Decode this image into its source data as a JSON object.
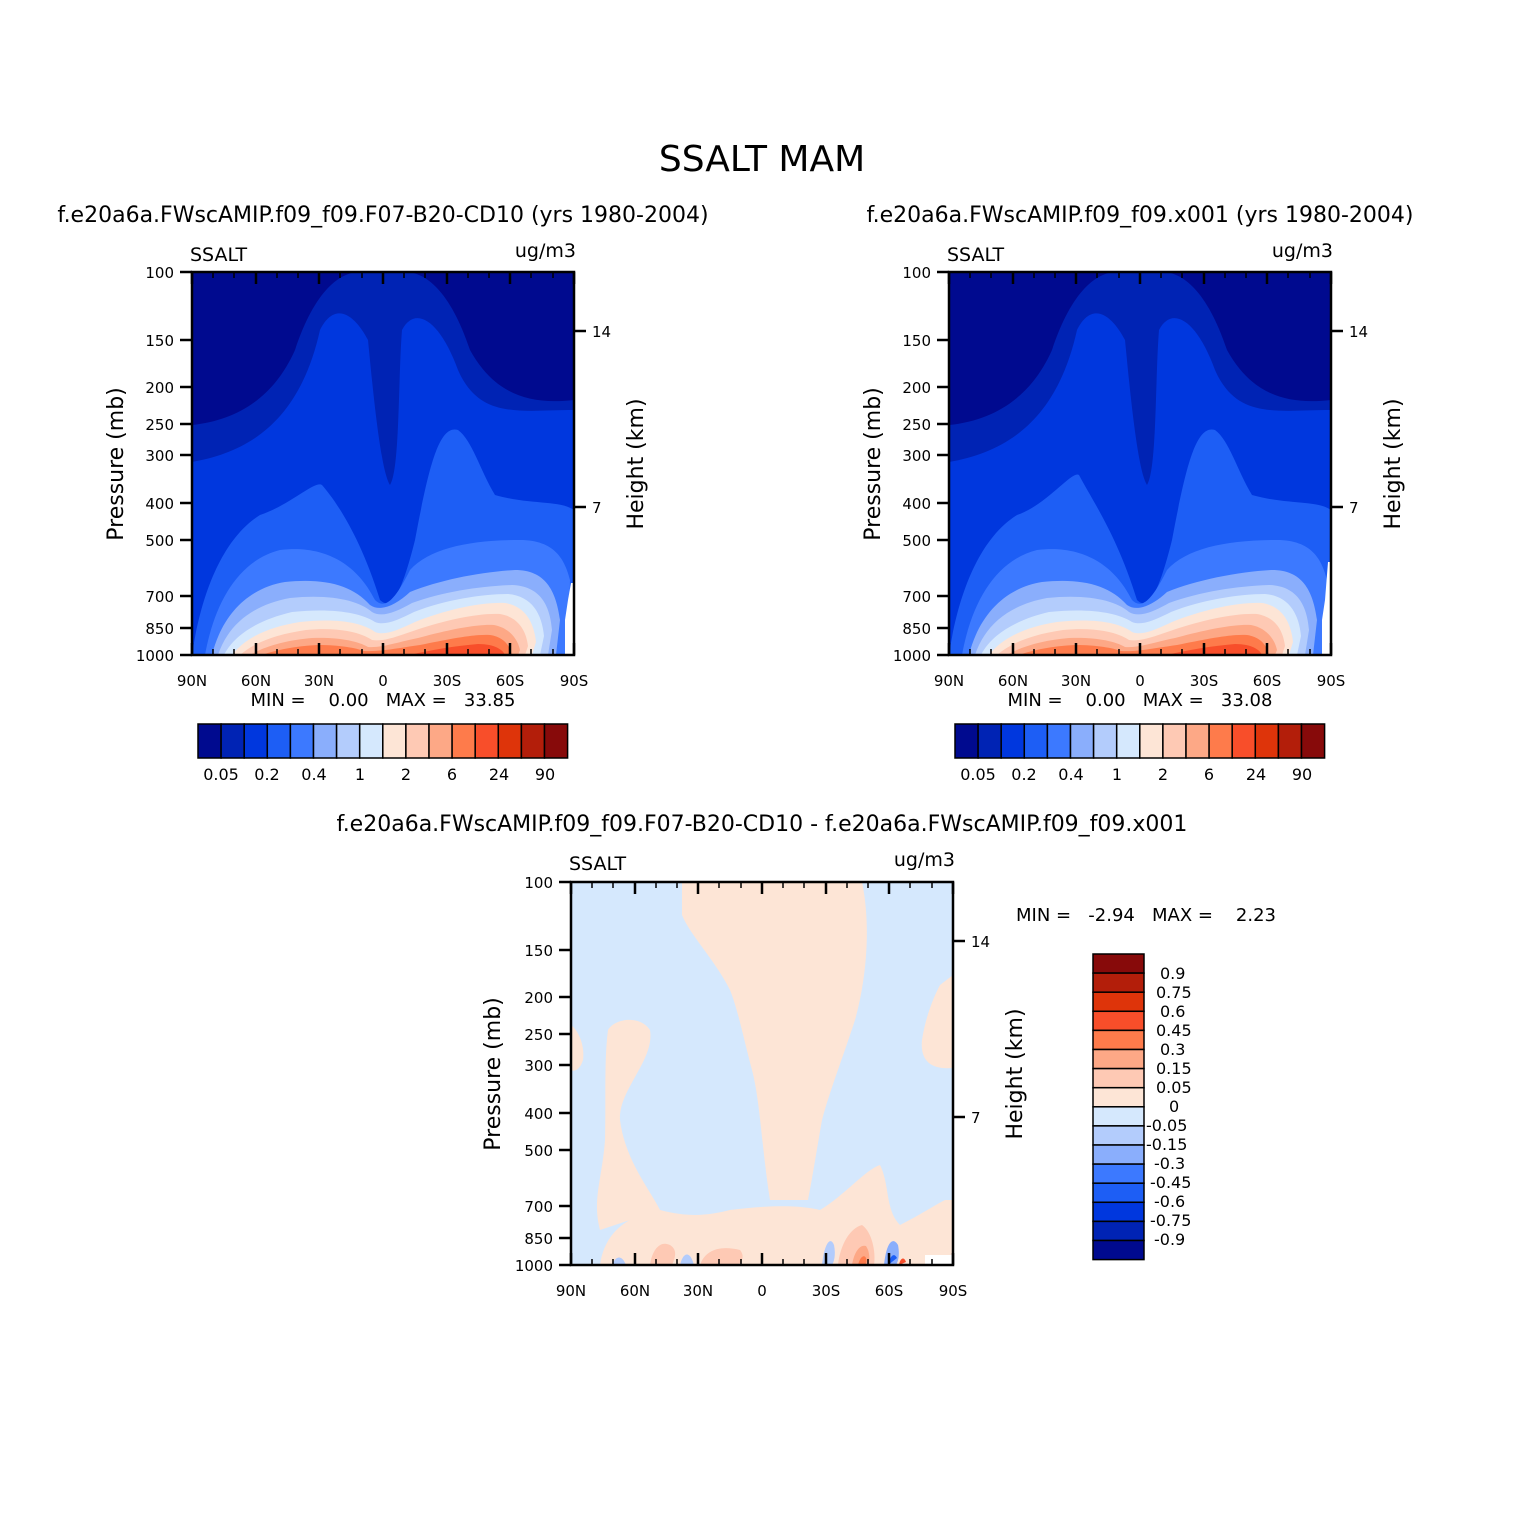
{
  "title": "SSALT MAM",
  "colors": {
    "abs": [
      "#000a8f",
      "#0023b4",
      "#0037de",
      "#1d5ef5",
      "#3c79ff",
      "#8aaefc",
      "#b3ccfc",
      "#d5e8fd",
      "#fde5d6",
      "#fec9b4",
      "#fda886",
      "#fe7b4b",
      "#f84e2a",
      "#de340a",
      "#b31e0a",
      "#870a0a"
    ],
    "diff": [
      "#000a8f",
      "#0023b4",
      "#0037de",
      "#1d5ef5",
      "#3c79ff",
      "#8aaefc",
      "#b3ccfc",
      "#d5e8fd",
      "#fde5d6",
      "#fec9b4",
      "#fda886",
      "#fe7b4b",
      "#f84e2a",
      "#de340a",
      "#b31e0a",
      "#870a0a"
    ]
  },
  "panels": [
    {
      "title": "f.e20a6a.FWscAMIP.f09_f09.F07-B20-CD10 (yrs 1980-2004)",
      "left_label": "SSALT",
      "right_label": "ug/m3",
      "ylabel": "Pressure (mb)",
      "ylabel2": "Height (km)",
      "minmax": "MIN =    0.00   MAX =   33.85",
      "colorbar_labels": [
        "0.05",
        "0.2",
        "0.4",
        "1",
        "2",
        "6",
        "24",
        "90"
      ]
    },
    {
      "title": "f.e20a6a.FWscAMIP.f09_f09.x001 (yrs 1980-2004)",
      "left_label": "SSALT",
      "right_label": "ug/m3",
      "ylabel": "Pressure (mb)",
      "ylabel2": "Height (km)",
      "minmax": "MIN =    0.00   MAX =   33.08",
      "colorbar_labels": [
        "0.05",
        "0.2",
        "0.4",
        "1",
        "2",
        "6",
        "24",
        "90"
      ]
    },
    {
      "title": "f.e20a6a.FWscAMIP.f09_f09.F07-B20-CD10 - f.e20a6a.FWscAMIP.f09_f09.x001",
      "left_label": "SSALT",
      "right_label": "ug/m3",
      "ylabel": "Pressure (mb)",
      "ylabel2": "Height (km)",
      "minmax": "MIN =   -2.94   MAX =    2.23",
      "colorbar_labels": [
        "0.9",
        "0.75",
        "0.6",
        "0.45",
        "0.3",
        "0.15",
        "0.05",
        "0",
        "-0.05",
        "-0.15",
        "-0.3",
        "-0.45",
        "-0.6",
        "-0.75",
        "-0.9"
      ]
    }
  ],
  "chart_data": [
    {
      "type": "heatmap",
      "title": "f.e20a6a.FWscAMIP.f09_f09.F07-B20-CD10 (yrs 1980-2004)",
      "xlabel": "",
      "ylabel": "Pressure (mb)",
      "ylabel_right": "Height (km)",
      "units": "ug/m3",
      "x_ticks": [
        "90N",
        "60N",
        "30N",
        "0",
        "30S",
        "60S",
        "90S"
      ],
      "y_ticks": [
        "100",
        "150",
        "200",
        "250",
        "300",
        "400",
        "500",
        "700",
        "850",
        "1000"
      ],
      "y2_ticks": [
        "14",
        "7"
      ],
      "xlim": [
        90,
        -90
      ],
      "ylim": [
        1000,
        100
      ],
      "y_scale": "log",
      "min": 0.0,
      "max": 33.85,
      "levels": [
        0.05,
        0.1,
        0.2,
        0.3,
        0.4,
        0.6,
        1,
        1.5,
        2,
        4,
        6,
        12,
        24,
        48,
        90
      ],
      "latitudes": [
        90,
        60,
        30,
        0,
        -30,
        -60,
        -90
      ],
      "pressures": [
        100,
        200,
        300,
        500,
        700,
        850,
        1000
      ],
      "values": [
        [
          0.02,
          0.02,
          0.1,
          0.05,
          0.1,
          0.02,
          0.02
        ],
        [
          0.02,
          0.05,
          0.2,
          0.1,
          0.2,
          0.05,
          0.02
        ],
        [
          0.05,
          0.1,
          0.3,
          0.1,
          0.4,
          0.1,
          0.05
        ],
        [
          0.1,
          0.4,
          0.6,
          0.2,
          0.8,
          0.6,
          0.1
        ],
        [
          0.2,
          1,
          2,
          0.4,
          2,
          1.5,
          0.3
        ],
        [
          0.3,
          2,
          6,
          1,
          8,
          6,
          0.4
        ],
        [
          0.5,
          6,
          15,
          3,
          25,
          30,
          1
        ]
      ]
    },
    {
      "type": "heatmap",
      "title": "f.e20a6a.FWscAMIP.f09_f09.x001 (yrs 1980-2004)",
      "xlabel": "",
      "ylabel": "Pressure (mb)",
      "ylabel_right": "Height (km)",
      "units": "ug/m3",
      "x_ticks": [
        "90N",
        "60N",
        "30N",
        "0",
        "30S",
        "60S",
        "90S"
      ],
      "y_ticks": [
        "100",
        "150",
        "200",
        "250",
        "300",
        "400",
        "500",
        "700",
        "850",
        "1000"
      ],
      "y2_ticks": [
        "14",
        "7"
      ],
      "xlim": [
        90,
        -90
      ],
      "ylim": [
        1000,
        100
      ],
      "y_scale": "log",
      "min": 0.0,
      "max": 33.08,
      "levels": [
        0.05,
        0.1,
        0.2,
        0.3,
        0.4,
        0.6,
        1,
        1.5,
        2,
        4,
        6,
        12,
        24,
        48,
        90
      ],
      "latitudes": [
        90,
        60,
        30,
        0,
        -30,
        -60,
        -90
      ],
      "pressures": [
        100,
        200,
        300,
        500,
        700,
        850,
        1000
      ],
      "values": [
        [
          0.02,
          0.02,
          0.1,
          0.05,
          0.1,
          0.02,
          0.02
        ],
        [
          0.02,
          0.05,
          0.2,
          0.1,
          0.2,
          0.05,
          0.02
        ],
        [
          0.05,
          0.1,
          0.3,
          0.1,
          0.4,
          0.1,
          0.05
        ],
        [
          0.1,
          0.4,
          0.6,
          0.2,
          0.8,
          0.6,
          0.1
        ],
        [
          0.2,
          1,
          2,
          0.4,
          2,
          1.5,
          0.3
        ],
        [
          0.3,
          2,
          6,
          1,
          8,
          6,
          0.4
        ],
        [
          0.5,
          6,
          15,
          3,
          25,
          30,
          1
        ]
      ]
    },
    {
      "type": "heatmap",
      "title": "f.e20a6a.FWscAMIP.f09_f09.F07-B20-CD10 - f.e20a6a.FWscAMIP.f09_f09.x001",
      "xlabel": "",
      "ylabel": "Pressure (mb)",
      "ylabel_right": "Height (km)",
      "units": "ug/m3",
      "x_ticks": [
        "90N",
        "60N",
        "30N",
        "0",
        "30S",
        "60S",
        "90S"
      ],
      "y_ticks": [
        "100",
        "150",
        "200",
        "250",
        "300",
        "400",
        "500",
        "700",
        "850",
        "1000"
      ],
      "y2_ticks": [
        "14",
        "7"
      ],
      "xlim": [
        90,
        -90
      ],
      "ylim": [
        1000,
        100
      ],
      "y_scale": "log",
      "min": -2.94,
      "max": 2.23,
      "levels": [
        -0.9,
        -0.75,
        -0.6,
        -0.45,
        -0.3,
        -0.15,
        -0.05,
        0,
        0.05,
        0.15,
        0.3,
        0.45,
        0.6,
        0.75,
        0.9
      ],
      "note_values": "predominantly between -0.05 and 0.05; positive band 40N-30S upper troposphere; extremes near surface at 50S-60S"
    }
  ]
}
